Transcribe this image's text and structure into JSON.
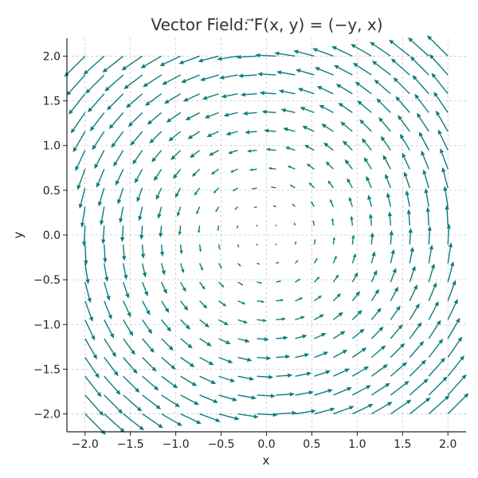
{
  "chart_data": {
    "type": "quiver",
    "title": "Vector Field: ⃗F(x, y) = (−y, x)",
    "xlabel": "x",
    "ylabel": "y",
    "xlim": [
      -2.2,
      2.2
    ],
    "ylim": [
      -2.2,
      2.2
    ],
    "xticks": [
      -2.0,
      -1.5,
      -1.0,
      -0.5,
      0.0,
      0.5,
      1.0,
      1.5,
      2.0
    ],
    "yticks": [
      -2.0,
      -1.5,
      -1.0,
      -0.5,
      0.0,
      0.5,
      1.0,
      1.5,
      2.0
    ],
    "xtick_labels": [
      "−2.0",
      "−1.5",
      "−1.0",
      "−0.5",
      "0.0",
      "0.5",
      "1.0",
      "1.5",
      "2.0"
    ],
    "ytick_labels": [
      "−2.0",
      "−1.5",
      "−1.0",
      "−0.5",
      "0.0",
      "0.5",
      "1.0",
      "1.5",
      "2.0"
    ],
    "field": {
      "u": "-y",
      "v": "x"
    },
    "grid_points": {
      "x_range": [
        -2,
        2
      ],
      "y_range": [
        -2,
        2
      ],
      "count_per_axis": 20
    },
    "grid": true,
    "color": "#0b7d7d"
  }
}
